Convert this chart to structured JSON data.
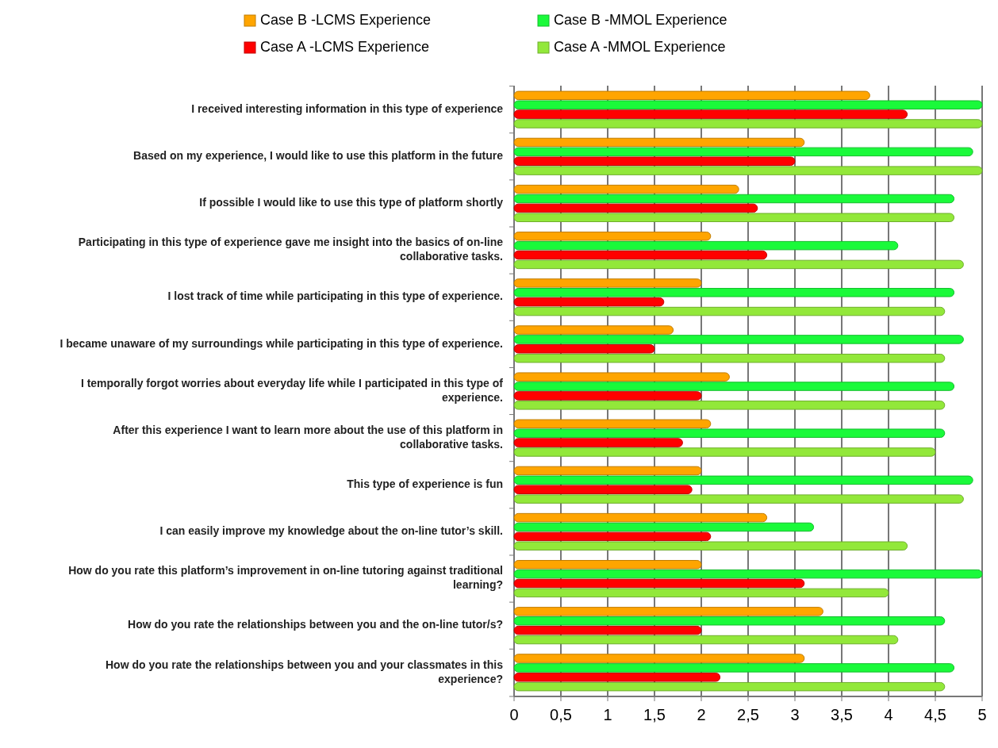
{
  "chart_data": {
    "type": "bar",
    "orientation": "horizontal",
    "categories": [
      "I received interesting information in this type of experience",
      "Based on my experience, I would like to use this platform in the future",
      "If possible I would like to use this type of platform shortly",
      "Participating in this type of experience gave me insight into the basics of on-line collaborative tasks.",
      "I lost track of time while participating in this type of experience.",
      "I became unaware of my surroundings while participating in this type of experience.",
      "I temporally forgot worries about everyday life while I participated in this type of experience.",
      "After this experience I want to learn more about the use of this platform in collaborative tasks.",
      "This type of experience is fun",
      "I can easily improve my knowledge about the on-line tutor’s skill.",
      "How do you rate this platform’s improvement in on-line tutoring against traditional learning?",
      "How do you rate the relationships between you and the on-line tutor/s?",
      "How do you rate the relationships between you and your classmates in this experience?"
    ],
    "series": [
      {
        "name": "Case B -LCMS Experience",
        "color": "#ffa500",
        "values": [
          3.8,
          3.1,
          2.4,
          2.1,
          2.0,
          1.7,
          2.3,
          2.1,
          2.0,
          2.7,
          2.0,
          3.3,
          3.1
        ]
      },
      {
        "name": "Case B -MMOL Experience",
        "color": "#1afa3a",
        "values": [
          5.0,
          4.9,
          4.7,
          4.1,
          4.7,
          4.8,
          4.7,
          4.6,
          4.9,
          3.2,
          5.0,
          4.6,
          4.7
        ]
      },
      {
        "name": "Case A -LCMS Experience",
        "color": "#ff0000",
        "values": [
          4.2,
          3.0,
          2.6,
          2.7,
          1.6,
          1.5,
          2.0,
          1.8,
          1.9,
          2.1,
          3.1,
          2.0,
          2.2
        ]
      },
      {
        "name": "Case A -MMOL Experience",
        "color": "#92e83a",
        "values": [
          5.0,
          5.0,
          4.7,
          4.8,
          4.6,
          4.6,
          4.6,
          4.5,
          4.8,
          4.2,
          4.0,
          4.1,
          4.6
        ]
      }
    ],
    "xlim": [
      0,
      5
    ],
    "xticks": [
      0,
      {
        "value": 0.5,
        "label": "0,5"
      },
      1,
      {
        "value": 1.5,
        "label": "1,5"
      },
      2,
      {
        "value": 2.5,
        "label": "2,5"
      },
      3,
      {
        "value": 3.5,
        "label": "3,5"
      },
      4,
      {
        "value": 4.5,
        "label": "4,5"
      },
      5
    ],
    "grid": "x",
    "legend": "top"
  }
}
